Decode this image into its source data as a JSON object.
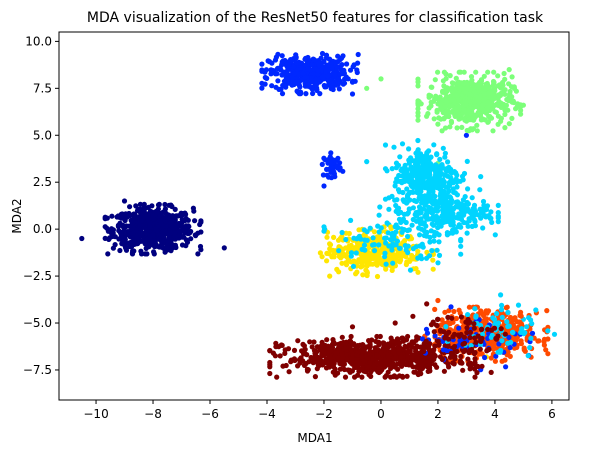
{
  "chart_data": {
    "type": "scatter",
    "title": "MDA visualization of the ResNet50 features for classification task",
    "xlabel": "MDA1",
    "ylabel": "MDA2",
    "xlim": [
      -11.3,
      6.6
    ],
    "ylim": [
      -9.1,
      10.5
    ],
    "xticks": [
      -10,
      -8,
      -6,
      -4,
      -2,
      0,
      2,
      4,
      6
    ],
    "xtick_labels": [
      "−10",
      "−8",
      "−6",
      "−4",
      "−2",
      "0",
      "2",
      "4",
      "6"
    ],
    "yticks": [
      -7.5,
      -5.0,
      -2.5,
      0.0,
      2.5,
      5.0,
      7.5,
      10.0
    ],
    "ytick_labels": [
      "−7.5",
      "−5.0",
      "−2.5",
      "0.0",
      "2.5",
      "5.0",
      "7.5",
      "10.0"
    ],
    "grid": false,
    "legend": "none",
    "clusters": [
      {
        "color": "#00007f",
        "center": [
          -8.0,
          0.0
        ],
        "spread": [
          0.7,
          0.55
        ],
        "count": 650,
        "outliers": [
          [
            -10.5,
            -0.5
          ],
          [
            -5.5,
            -1.0
          ],
          [
            -9.0,
            1.5
          ]
        ]
      },
      {
        "color": "#0028ff",
        "center": [
          -2.5,
          8.3
        ],
        "spread": [
          0.7,
          0.45
        ],
        "count": 420,
        "outliers": [
          [
            -1.0,
            7.2
          ],
          [
            2.5,
            7.0
          ],
          [
            3.0,
            5.0
          ],
          [
            -0.8,
            9.3
          ]
        ]
      },
      {
        "color": "#0028ff",
        "center": [
          -1.7,
          3.4
        ],
        "spread": [
          0.15,
          0.3
        ],
        "count": 40,
        "outliers": [
          [
            -2.0,
            2.3
          ]
        ]
      },
      {
        "color": "#7cff79",
        "center": [
          3.1,
          6.8
        ],
        "spread": [
          0.75,
          0.65
        ],
        "count": 520,
        "outliers": [
          [
            -0.5,
            7.5
          ],
          [
            0.0,
            8.0
          ],
          [
            2.0,
            3.5
          ],
          [
            4.5,
            8.5
          ],
          [
            5.0,
            6.6
          ]
        ]
      },
      {
        "color": "#00d4ff",
        "center": [
          1.6,
          2.8
        ],
        "spread": [
          0.6,
          0.8
        ],
        "count": 320,
        "outliers": [
          [
            -0.5,
            3.6
          ],
          [
            3.5,
            2.8
          ]
        ]
      },
      {
        "color": "#00d4ff",
        "center": [
          2.2,
          0.9
        ],
        "spread": [
          0.8,
          0.5
        ],
        "count": 260,
        "outliers": [
          [
            4.2,
            -3.5
          ],
          [
            5.0,
            -4.8
          ]
        ]
      },
      {
        "color": "#ffe600",
        "center": [
          -0.2,
          -1.2
        ],
        "spread": [
          0.85,
          0.55
        ],
        "count": 330,
        "outliers": [
          [
            -1.8,
            -2.5
          ],
          [
            1.3,
            -2.3
          ],
          [
            3.7,
            -6.8
          ]
        ]
      },
      {
        "color": "#00d4ff",
        "center": [
          0.4,
          -0.5
        ],
        "spread": [
          1.0,
          0.7
        ],
        "count": 110,
        "outliers": []
      },
      {
        "color": "#ff4a00",
        "center": [
          3.7,
          -5.6
        ],
        "spread": [
          0.9,
          0.6
        ],
        "count": 470,
        "outliers": [
          [
            2.0,
            -3.8
          ],
          [
            5.2,
            -4.6
          ],
          [
            1.8,
            -6.5
          ]
        ]
      },
      {
        "color": "#7f0000",
        "center": [
          -0.3,
          -6.8
        ],
        "spread": [
          1.5,
          0.45
        ],
        "count": 720,
        "outliers": [
          [
            -1.0,
            -5.2
          ],
          [
            -2.5,
            -6.0
          ],
          [
            2.0,
            -4.8
          ],
          [
            0.5,
            -5.0
          ]
        ]
      },
      {
        "color": "#0028ff",
        "center": [
          3.3,
          -5.8
        ],
        "spread": [
          1.0,
          0.7
        ],
        "count": 55,
        "outliers": []
      },
      {
        "color": "#00d4ff",
        "center": [
          4.2,
          -5.4
        ],
        "spread": [
          0.8,
          0.7
        ],
        "count": 60,
        "outliers": []
      },
      {
        "color": "#7f0000",
        "center": [
          2.6,
          -5.9
        ],
        "spread": [
          0.8,
          0.8
        ],
        "count": 90,
        "outliers": []
      }
    ]
  }
}
